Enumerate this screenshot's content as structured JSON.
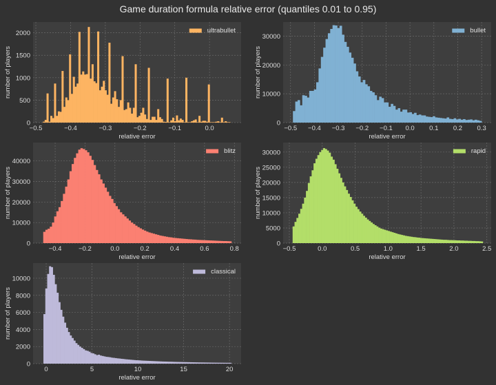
{
  "title": "Game duration formula relative error (quantiles 0.01 to 0.95)",
  "chart_data": [
    {
      "type": "bar",
      "name": "ultrabullet",
      "color": "#FDB462",
      "xlabel": "relative error",
      "ylabel": "number of players",
      "legend": "top-right",
      "grid": true,
      "xlim": [
        -0.508,
        0.091
      ],
      "ylim": [
        0,
        2240
      ],
      "bin_range": [
        -0.48,
        0.06
      ],
      "x_ticks": [
        -0.5,
        -0.4,
        -0.3,
        -0.2,
        -0.1,
        0.0
      ],
      "x_tick_labels": [
        "−0.5",
        "−0.4",
        "−0.3",
        "−0.2",
        "−0.1",
        "0.0"
      ],
      "y_ticks": [
        0,
        500,
        1000,
        1500,
        2000
      ],
      "y_tick_labels": [
        "0",
        "500",
        "1000",
        "1500",
        "2000"
      ],
      "values": [
        20,
        60,
        650,
        20,
        150,
        100,
        870,
        150,
        250,
        240,
        1150,
        350,
        560,
        500,
        1520,
        640,
        1020,
        800,
        870,
        2020,
        1070,
        1140,
        1070,
        1080,
        2130,
        980,
        1300,
        920,
        880,
        2030,
        720,
        800,
        930,
        720,
        620,
        1780,
        420,
        560,
        700,
        520,
        350,
        500,
        1480,
        280,
        300,
        450,
        330,
        200,
        330,
        1300,
        120,
        150,
        220,
        330,
        180,
        80,
        1220,
        60,
        130,
        130,
        60,
        300,
        120,
        80,
        20,
        15,
        980,
        10,
        50,
        110,
        30,
        160,
        50,
        90,
        60,
        10,
        1000,
        10,
        10,
        30,
        50,
        70,
        10,
        150,
        20,
        40,
        40,
        20,
        850,
        10,
        10,
        10,
        20,
        30,
        10,
        110,
        10,
        30,
        10,
        10
      ]
    },
    {
      "type": "bar",
      "name": "bullet",
      "color": "#80B1D3",
      "xlabel": "relative error",
      "ylabel": "number of players",
      "legend": "top-right",
      "grid": true,
      "xlim": [
        -0.531,
        0.34
      ],
      "ylim": [
        0,
        34890
      ],
      "bin_range": [
        -0.49,
        0.3
      ],
      "x_ticks": [
        -0.5,
        -0.4,
        -0.3,
        -0.2,
        -0.1,
        0.0,
        0.1,
        0.2,
        0.3
      ],
      "x_tick_labels": [
        "−0.5",
        "−0.4",
        "−0.3",
        "−0.2",
        "−0.1",
        "0.0",
        "0.1",
        "0.2",
        "0.3"
      ],
      "y_ticks": [
        0,
        10000,
        20000,
        30000
      ],
      "y_tick_labels": [
        "0",
        "10000",
        "20000",
        "30000"
      ],
      "values": [
        4000,
        7300,
        7800,
        6000,
        9500,
        9300,
        8700,
        11000,
        11000,
        11500,
        14000,
        18800,
        22800,
        26000,
        29000,
        31000,
        32500,
        33800,
        33700,
        32800,
        33600,
        30500,
        28000,
        26300,
        24300,
        22500,
        20500,
        17800,
        16000,
        14000,
        14800,
        13300,
        12600,
        11000,
        10500,
        9500,
        7800,
        9000,
        8500,
        7000,
        7000,
        5500,
        6500,
        5800,
        4500,
        5000,
        3800,
        4500,
        4500,
        3500,
        3600,
        3000,
        3400,
        2600,
        2800,
        2500,
        2500,
        2100,
        2000,
        1900,
        2200,
        1800,
        1700,
        1600,
        1500,
        1400,
        1800,
        1300,
        1200,
        1500,
        1100,
        1300,
        1000,
        1200,
        900,
        1000,
        1100,
        800,
        1000,
        800,
        600
      ]
    },
    {
      "type": "bar",
      "name": "blitz",
      "color": "#FB8072",
      "xlabel": "relative error",
      "ylabel": "number of players",
      "legend": "top-right",
      "grid": true,
      "xlim": [
        -0.548,
        0.845
      ],
      "ylim": [
        0,
        48940
      ],
      "bin_range": [
        -0.48,
        0.78
      ],
      "x_ticks": [
        -0.4,
        -0.2,
        0.0,
        0.2,
        0.4,
        0.6,
        0.8
      ],
      "x_tick_labels": [
        "−0.4",
        "−0.2",
        "0.0",
        "0.2",
        "0.4",
        "0.6",
        "0.8"
      ],
      "y_ticks": [
        0,
        10000,
        20000,
        30000,
        40000
      ],
      "y_tick_labels": [
        "0",
        "10000",
        "20000",
        "30000",
        "40000"
      ],
      "values": [
        5500,
        6500,
        7000,
        8000,
        10000,
        13000,
        15500,
        17500,
        20500,
        24000,
        27500,
        31000,
        35000,
        38500,
        41500,
        43700,
        45500,
        46200,
        45800,
        45200,
        44200,
        42500,
        40500,
        38000,
        35600,
        33500,
        31000,
        29000,
        27000,
        25000,
        23000,
        21500,
        19500,
        18000,
        16500,
        15000,
        14000,
        13000,
        12000,
        11000,
        10000,
        9300,
        8500,
        7800,
        7200,
        6600,
        6100,
        5600,
        5200,
        4900,
        4600,
        4300,
        4000,
        3700,
        3500,
        3300,
        3100,
        2900,
        2800,
        2600,
        2500,
        2400,
        2300,
        2200,
        2100,
        2000,
        1900,
        1850,
        1750,
        1700,
        1600,
        1550,
        1500,
        1450,
        1400,
        1350,
        1300,
        1250,
        1200,
        1150,
        1100,
        1050,
        1000,
        1000,
        950,
        900
      ]
    },
    {
      "type": "bar",
      "name": "rapid",
      "color": "#B3DE69",
      "xlabel": "relative error",
      "ylabel": "number of players",
      "legend": "top-right",
      "grid": true,
      "xlim": [
        -0.594,
        2.566
      ],
      "ylim": [
        0,
        33130
      ],
      "bin_range": [
        -0.45,
        2.44
      ],
      "x_ticks": [
        -0.5,
        0.0,
        0.5,
        1.0,
        1.5,
        2.0,
        2.5
      ],
      "x_tick_labels": [
        "−0.5",
        "0.0",
        "0.5",
        "1.0",
        "1.5",
        "2.0",
        "2.5"
      ],
      "y_ticks": [
        0,
        5000,
        10000,
        15000,
        20000,
        25000,
        30000
      ],
      "y_tick_labels": [
        "0",
        "5000",
        "10000",
        "15000",
        "20000",
        "25000",
        "30000"
      ],
      "values": [
        5500,
        7000,
        8300,
        9700,
        11300,
        13000,
        15000,
        17200,
        19800,
        22000,
        24000,
        26300,
        27800,
        29000,
        30000,
        30700,
        31300,
        31000,
        30500,
        29800,
        28500,
        27500,
        26000,
        24500,
        23000,
        21500,
        20000,
        18700,
        17500,
        16300,
        15200,
        14100,
        13000,
        12000,
        11200,
        10400,
        9700,
        9000,
        8400,
        7800,
        7300,
        6800,
        6300,
        5900,
        5500,
        5100,
        4800,
        4600,
        4400,
        4200,
        4000,
        3800,
        3600,
        3400,
        3200,
        3000,
        2850,
        2700,
        2550,
        2400,
        2300,
        2200,
        2100,
        2000,
        1950,
        1850,
        1800,
        1700,
        1650,
        1600,
        1550,
        1500,
        1450,
        1400,
        1350,
        1300,
        1250,
        1200,
        1150,
        1100,
        1100,
        1050,
        1000,
        1000,
        950,
        950,
        900,
        900,
        850,
        850,
        800,
        800,
        750,
        750,
        700,
        700,
        650,
        650,
        600,
        550
      ]
    },
    {
      "type": "bar",
      "name": "classical",
      "color": "#BEBADA",
      "xlabel": "relative error",
      "ylabel": "number of players",
      "legend": "top-right",
      "grid": true,
      "xlim": [
        -1.43,
        21.27
      ],
      "ylim": [
        0,
        11770
      ],
      "bin_range": [
        -0.3,
        20.2
      ],
      "x_ticks": [
        0,
        5,
        10,
        15,
        20
      ],
      "x_tick_labels": [
        "0",
        "5",
        "10",
        "15",
        "20"
      ],
      "y_ticks": [
        0,
        2000,
        4000,
        6000,
        8000,
        10000
      ],
      "y_tick_labels": [
        "0",
        "2000",
        "4000",
        "6000",
        "8000",
        "10000"
      ],
      "values": [
        5800,
        8800,
        10500,
        11400,
        11300,
        10400,
        9300,
        8300,
        7200,
        6300,
        5500,
        4800,
        4200,
        3700,
        3300,
        3000,
        2700,
        2400,
        2200,
        2000,
        1850,
        1700,
        1550,
        1500,
        1400,
        1250,
        1200,
        1100,
        1000,
        1050,
        950,
        900,
        850,
        800,
        780,
        750,
        700,
        680,
        650,
        620,
        600,
        570,
        550,
        520,
        500,
        480,
        460,
        440,
        420,
        400,
        390,
        380,
        360,
        350,
        340,
        330,
        320,
        310,
        300,
        290,
        280,
        270,
        260,
        250,
        245,
        240,
        230,
        225,
        220,
        210,
        205,
        200,
        195,
        190,
        185,
        180,
        175,
        170,
        165,
        160,
        155,
        150,
        145,
        140,
        138,
        135,
        130,
        128,
        125,
        120,
        118,
        115,
        112,
        110,
        108,
        105,
        102,
        100,
        98,
        95
      ]
    }
  ]
}
